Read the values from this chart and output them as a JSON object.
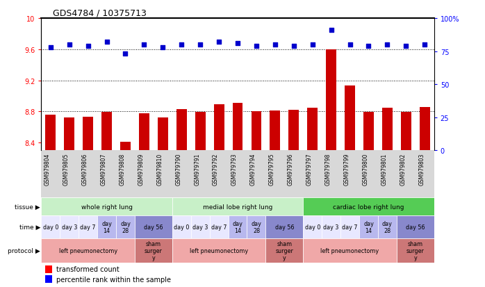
{
  "title": "GDS4784 / 10375713",
  "samples": [
    "GSM979804",
    "GSM979805",
    "GSM979806",
    "GSM979807",
    "GSM979808",
    "GSM979809",
    "GSM979810",
    "GSM979790",
    "GSM979791",
    "GSM979792",
    "GSM979793",
    "GSM979794",
    "GSM979795",
    "GSM979796",
    "GSM979797",
    "GSM979798",
    "GSM979799",
    "GSM979800",
    "GSM979801",
    "GSM979802",
    "GSM979803"
  ],
  "bar_values": [
    8.76,
    8.72,
    8.73,
    8.79,
    8.41,
    8.78,
    8.72,
    8.83,
    8.79,
    8.89,
    8.91,
    8.8,
    8.81,
    8.82,
    8.85,
    9.6,
    9.13,
    8.79,
    8.85,
    8.79,
    8.86
  ],
  "dot_values": [
    78,
    80,
    79,
    82,
    73,
    80,
    78,
    80,
    80,
    82,
    81,
    79,
    80,
    79,
    80,
    91,
    80,
    79,
    80,
    79,
    80
  ],
  "ylim_left": [
    8.3,
    10.0
  ],
  "ylim_right": [
    0,
    100
  ],
  "yticks_left": [
    8.4,
    8.8,
    9.2,
    9.6,
    10.0
  ],
  "yticks_right": [
    0,
    25,
    50,
    75,
    100
  ],
  "ytick_labels_left": [
    "8.4",
    "8.8",
    "9.2",
    "9.6",
    "10"
  ],
  "ytick_labels_right": [
    "0",
    "25",
    "50",
    "75",
    "100%"
  ],
  "hlines": [
    8.8,
    9.2,
    9.6
  ],
  "bar_color": "#cc0000",
  "dot_color": "#0000cc",
  "bg_color": "#ffffff",
  "tissue_groups": [
    {
      "label": "whole right lung",
      "start": 0,
      "end": 7,
      "color": "#c8f0c8"
    },
    {
      "label": "medial lobe right lung",
      "start": 7,
      "end": 14,
      "color": "#c8f0c8"
    },
    {
      "label": "cardiac lobe right lung",
      "start": 14,
      "end": 21,
      "color": "#55cc55"
    }
  ],
  "time_groups": [
    {
      "label": "day 0",
      "start": 0,
      "end": 1,
      "color": "#e8e8ff"
    },
    {
      "label": "day 3",
      "start": 1,
      "end": 2,
      "color": "#e8e8ff"
    },
    {
      "label": "day 7",
      "start": 2,
      "end": 3,
      "color": "#e8e8ff"
    },
    {
      "label": "day\n14",
      "start": 3,
      "end": 4,
      "color": "#b8b8ee"
    },
    {
      "label": "day\n28",
      "start": 4,
      "end": 5,
      "color": "#b8b8ee"
    },
    {
      "label": "day 56",
      "start": 5,
      "end": 7,
      "color": "#8888cc"
    },
    {
      "label": "day 0",
      "start": 7,
      "end": 8,
      "color": "#e8e8ff"
    },
    {
      "label": "day 3",
      "start": 8,
      "end": 9,
      "color": "#e8e8ff"
    },
    {
      "label": "day 7",
      "start": 9,
      "end": 10,
      "color": "#e8e8ff"
    },
    {
      "label": "day\n14",
      "start": 10,
      "end": 11,
      "color": "#b8b8ee"
    },
    {
      "label": "day\n28",
      "start": 11,
      "end": 12,
      "color": "#b8b8ee"
    },
    {
      "label": "day 56",
      "start": 12,
      "end": 14,
      "color": "#8888cc"
    },
    {
      "label": "day 0",
      "start": 14,
      "end": 15,
      "color": "#e8e8ff"
    },
    {
      "label": "day 3",
      "start": 15,
      "end": 16,
      "color": "#e8e8ff"
    },
    {
      "label": "day 7",
      "start": 16,
      "end": 17,
      "color": "#e8e8ff"
    },
    {
      "label": "day\n14",
      "start": 17,
      "end": 18,
      "color": "#b8b8ee"
    },
    {
      "label": "day\n28",
      "start": 18,
      "end": 19,
      "color": "#b8b8ee"
    },
    {
      "label": "day 56",
      "start": 19,
      "end": 21,
      "color": "#8888cc"
    }
  ],
  "protocol_groups": [
    {
      "label": "left pneumonectomy",
      "start": 0,
      "end": 5,
      "color": "#f0a8a8"
    },
    {
      "label": "sham\nsurger\ny",
      "start": 5,
      "end": 7,
      "color": "#cc7777"
    },
    {
      "label": "left pneumonectomy",
      "start": 7,
      "end": 12,
      "color": "#f0a8a8"
    },
    {
      "label": "sham\nsurger\ny",
      "start": 12,
      "end": 14,
      "color": "#cc7777"
    },
    {
      "label": "left pneumonectomy",
      "start": 14,
      "end": 19,
      "color": "#f0a8a8"
    },
    {
      "label": "sham\nsurger\ny",
      "start": 19,
      "end": 21,
      "color": "#cc7777"
    }
  ],
  "row_labels": [
    "tissue",
    "time",
    "protocol"
  ],
  "main_bg": "#ffffff",
  "xtick_bg": "#d8d8d8"
}
